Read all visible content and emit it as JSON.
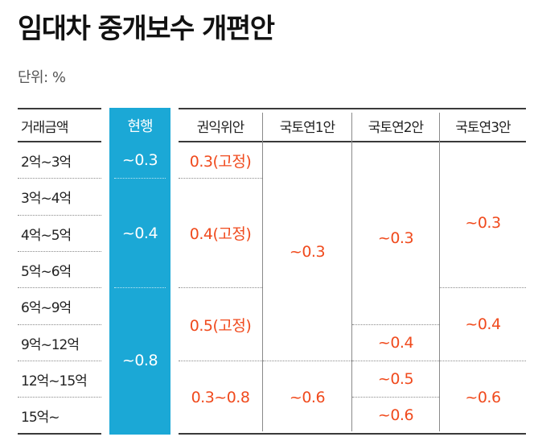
{
  "title": "임대차 중개보수 개편안",
  "unit": "단위: %",
  "table": {
    "headers": {
      "price": "거래금액",
      "current": "현행",
      "acrc": "권익위안",
      "plan1": "국토연1안",
      "plan2": "국토연2안",
      "plan3": "국토연3안"
    },
    "rows": [
      "2억~3억",
      "3억~4억",
      "4억~5억",
      "5억~6억",
      "6억~9억",
      "9억~12억",
      "12억~15억",
      "15억~"
    ],
    "current": [
      "~0.3",
      "~0.4",
      "~0.8"
    ],
    "acrc": [
      "0.3(고정)",
      "0.4(고정)",
      "0.5(고정)",
      "0.3~0.8"
    ],
    "plan1": [
      "~0.3",
      "~0.6"
    ],
    "plan2": [
      "~0.3",
      "~0.4",
      "~0.5",
      "~0.6"
    ],
    "plan3": [
      "~0.3",
      "~0.4",
      "~0.6"
    ]
  },
  "colors": {
    "current_bg": "#1ba8d6",
    "value_text": "#f04a1d"
  }
}
